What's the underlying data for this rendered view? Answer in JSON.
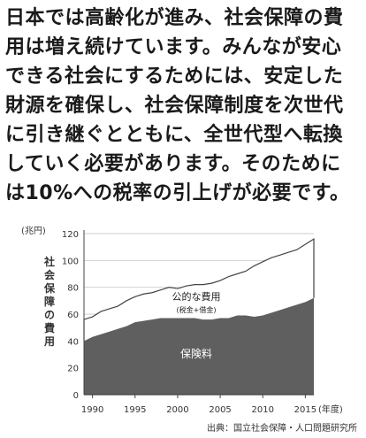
{
  "paragraph": {
    "lines": [
      "日本では高齢化が進み、社会保障の費",
      "用は増え続けています。みんなが安心",
      "できる社会にするためには、安定した",
      "財源を確保し、社会保障制度を次世代",
      "に引き継ぐとともに、全世代型へ転換",
      "していく必要があります。そのために",
      "は10%への税率の引上げが必要です。"
    ]
  },
  "chart_data": {
    "type": "area",
    "y_unit": "(兆円)",
    "ylabel": "社会保障の費用",
    "x_unit": "(年度)",
    "x_ticks": [
      1990,
      1995,
      2000,
      2005,
      2010,
      2015
    ],
    "y_ticks": [
      0,
      20,
      40,
      60,
      80,
      100,
      120
    ],
    "xlim": [
      1989,
      2016
    ],
    "ylim": [
      0,
      120
    ],
    "x": [
      1989,
      1990,
      1991,
      1992,
      1993,
      1994,
      1995,
      1996,
      1997,
      1998,
      1999,
      2000,
      2001,
      2002,
      2003,
      2004,
      2005,
      2006,
      2007,
      2008,
      2009,
      2010,
      2011,
      2012,
      2013,
      2014,
      2015,
      2016
    ],
    "series": [
      {
        "name": "保険料",
        "values": [
          40,
          43,
          45,
          47,
          49,
          51,
          54,
          55,
          56,
          57,
          57,
          57,
          57,
          57,
          56,
          56,
          57,
          57,
          59,
          59,
          58,
          59,
          61,
          63,
          65,
          67,
          69,
          72
        ]
      },
      {
        "name": "公的な費用",
        "values": [
          56,
          58,
          62,
          64,
          66,
          70,
          73,
          75,
          76,
          78,
          80,
          79,
          81,
          82,
          82,
          83,
          85,
          88,
          90,
          92,
          96,
          99,
          102,
          104,
          106,
          108,
          112,
          116
        ]
      }
    ],
    "annotations": {
      "upper_label": "公的な費用",
      "upper_sublabel": "(税金+借金)",
      "lower_label": "保険料"
    },
    "source": "出典：国立社会保障・人口問題研究所",
    "colors": {
      "lower_fill": "#5f5f5f",
      "upper_fill": "#ffffff",
      "axis": "#444444",
      "grid": "#bdbdbd"
    }
  }
}
